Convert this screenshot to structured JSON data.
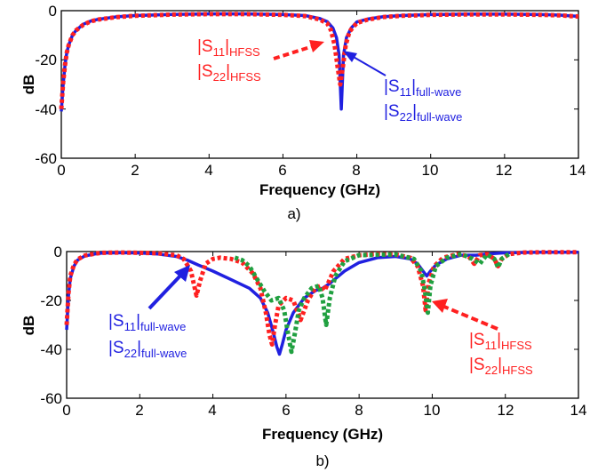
{
  "chart_data": [
    {
      "id": "a",
      "type": "line",
      "caption": "a)",
      "xlabel": "Frequency (GHz)",
      "ylabel": "dB",
      "xlim": [
        0,
        14
      ],
      "ylim": [
        -60,
        0
      ],
      "xticks": [
        "0",
        "2",
        "4",
        "6",
        "8",
        "10",
        "12",
        "14"
      ],
      "yticks": [
        "0",
        "-20",
        "-40",
        "-60"
      ],
      "grid": false,
      "series": [
        {
          "legend_label": "|S11|full-wave, |S22|full-wave",
          "color": "#2020e0",
          "style": "solid",
          "x": [
            0.0,
            0.05,
            0.1,
            0.15,
            0.2,
            0.3,
            0.4,
            0.6,
            0.8,
            1.0,
            1.5,
            2,
            3,
            4,
            5,
            6,
            6.6,
            7.0,
            7.2,
            7.35,
            7.45,
            7.52,
            7.58,
            7.64,
            7.72,
            7.85,
            8.0,
            8.3,
            8.7,
            9.2,
            10,
            11,
            12,
            13,
            13.5,
            14.0
          ],
          "y": [
            -41,
            -30,
            -22,
            -17,
            -14,
            -10,
            -8,
            -5.5,
            -4.2,
            -3.5,
            -2.5,
            -2.0,
            -1.5,
            -1.3,
            -1.3,
            -1.6,
            -2.0,
            -3.2,
            -4.5,
            -7,
            -11,
            -18,
            -40,
            -18,
            -11,
            -7,
            -4.6,
            -3.4,
            -2.5,
            -2.0,
            -1.6,
            -1.4,
            -1.4,
            -1.6,
            -1.8,
            -2.3
          ]
        },
        {
          "legend_label": "|S11|HFSS, |S22|HFSS",
          "color": "#ff2020",
          "style": "dotted",
          "x": [
            0.0,
            0.05,
            0.1,
            0.15,
            0.2,
            0.3,
            0.4,
            0.6,
            0.8,
            1.0,
            1.5,
            2,
            3,
            4,
            5,
            6,
            6.6,
            7.0,
            7.2,
            7.3,
            7.4,
            7.48,
            7.55,
            7.62,
            7.7,
            7.8,
            8.0,
            8.3,
            8.7,
            9.2,
            10,
            11,
            12,
            13,
            13.5,
            14.0
          ],
          "y": [
            -40,
            -29,
            -22,
            -17,
            -14,
            -10,
            -8,
            -5.7,
            -4.3,
            -3.6,
            -2.6,
            -2.1,
            -1.6,
            -1.4,
            -1.4,
            -1.7,
            -2.2,
            -3.6,
            -5.2,
            -8,
            -14,
            -23,
            -30,
            -23,
            -14,
            -8.5,
            -5.0,
            -3.6,
            -2.6,
            -2.1,
            -1.7,
            -1.5,
            -1.5,
            -1.7,
            -1.9,
            -2.4
          ]
        }
      ],
      "annotations": [
        {
          "series_color": "#ff2020",
          "line1_main": "|S",
          "line1_sub": "11",
          "line1_mid": "|",
          "line1_sub2": "HFSS",
          "line2_main": "|S",
          "line2_sub": "22",
          "line2_mid": "|",
          "line2_sub2": "HFSS"
        },
        {
          "series_color": "#2020e0",
          "line1_main": "|S",
          "line1_sub": "11",
          "line1_mid": "|",
          "line1_sub2": "full-wave",
          "line2_main": "|S",
          "line2_sub": "22",
          "line2_mid": "|",
          "line2_sub2": "full-wave"
        }
      ]
    },
    {
      "id": "b",
      "type": "line",
      "caption": "b)",
      "xlabel": "Frequency (GHz)",
      "ylabel": "dB",
      "xlim": [
        0,
        14
      ],
      "ylim": [
        -60,
        0
      ],
      "xticks": [
        "0",
        "2",
        "4",
        "6",
        "8",
        "10",
        "12",
        "14"
      ],
      "yticks": [
        "0",
        "-20",
        "-40",
        "-60"
      ],
      "grid": false,
      "series": [
        {
          "legend_label": "|S11|full-wave, |S22|full-wave",
          "color": "#2020e0",
          "style": "solid",
          "x": [
            0.0,
            0.05,
            0.1,
            0.2,
            0.3,
            0.5,
            0.8,
            1.0,
            1.5,
            2.0,
            2.5,
            3.0,
            3.3,
            3.6,
            4.0,
            4.5,
            5.0,
            5.3,
            5.5,
            5.65,
            5.75,
            5.82,
            5.9,
            6.0,
            6.2,
            6.5,
            6.8,
            7.0,
            7.2,
            7.6,
            8.0,
            8.5,
            9.0,
            9.4,
            9.6,
            9.75,
            9.85,
            9.95,
            10.1,
            10.4,
            10.8,
            11.2,
            11.5,
            12.0,
            13.0,
            14.0
          ],
          "y": [
            -32,
            -18,
            -11,
            -6,
            -3.5,
            -1.8,
            -0.9,
            -0.6,
            -0.5,
            -0.6,
            -1.0,
            -2.0,
            -3.5,
            -5.5,
            -8,
            -11.5,
            -15,
            -19,
            -25,
            -33,
            -39,
            -42,
            -38,
            -32,
            -25,
            -19,
            -16,
            -15,
            -13,
            -8,
            -4.5,
            -2.5,
            -2.0,
            -3.0,
            -5.0,
            -8,
            -10,
            -8,
            -5.5,
            -3.0,
            -1.5,
            -1.5,
            -1.0,
            -0.5,
            -0.3,
            -0.3
          ]
        },
        {
          "legend_label": "|S11|HFSS, |S22|HFSS",
          "color": "#ff2020",
          "style": "dotted",
          "x": [
            0.0,
            0.05,
            0.1,
            0.2,
            0.3,
            0.5,
            0.8,
            1.0,
            1.5,
            2.0,
            2.5,
            3.0,
            3.2,
            3.4,
            3.55,
            3.65,
            3.8,
            4.0,
            4.2,
            4.5,
            4.8,
            5.1,
            5.3,
            5.45,
            5.55,
            5.62,
            5.7,
            5.8,
            6.0,
            6.2,
            6.4,
            6.6,
            6.8,
            6.95,
            7.05,
            7.15,
            7.3,
            7.6,
            8.0,
            8.5,
            9.0,
            9.4,
            9.6,
            9.75,
            9.82,
            9.9,
            10.05,
            10.3,
            10.7,
            11.0,
            11.15,
            11.3,
            11.5,
            11.7,
            11.8,
            11.9,
            12.1,
            12.5,
            13.0,
            14.0
          ],
          "y": [
            -30,
            -17,
            -10,
            -5.5,
            -3.2,
            -1.6,
            -0.8,
            -0.5,
            -0.4,
            -0.5,
            -0.7,
            -1.5,
            -3,
            -8,
            -18,
            -12,
            -5,
            -3,
            -2.5,
            -3,
            -4.5,
            -9,
            -15,
            -25,
            -34,
            -38,
            -30,
            -22,
            -19,
            -20,
            -28,
            -20,
            -15,
            -14,
            -16,
            -13,
            -8,
            -3,
            -1.5,
            -1.0,
            -1.2,
            -2.5,
            -6,
            -14,
            -24,
            -13,
            -6,
            -2.5,
            -1.0,
            -2,
            -5,
            -1.5,
            -1.0,
            -3,
            -6,
            -3,
            -1.0,
            -0.4,
            -0.3,
            -0.3
          ]
        },
        {
          "legend_label": "",
          "color": "#20a040",
          "style": "dotted",
          "x": [
            4.6,
            4.8,
            5.0,
            5.2,
            5.4,
            5.6,
            5.8,
            5.95,
            6.05,
            6.15,
            6.25,
            6.35,
            6.5,
            6.7,
            6.9,
            7.0,
            7.1,
            7.2,
            7.35,
            7.6,
            8.0,
            9.0,
            9.5,
            9.7,
            9.8,
            9.88,
            9.95,
            10.1,
            10.4,
            10.8,
            11.1,
            11.3,
            11.5,
            11.7,
            11.8,
            11.9,
            12.1
          ],
          "y": [
            -2.5,
            -3.5,
            -6,
            -11,
            -16,
            -20,
            -19,
            -24,
            -33,
            -41,
            -33,
            -24,
            -19,
            -15,
            -14,
            -19,
            -30,
            -19,
            -10,
            -4,
            -1.5,
            -1.2,
            -3.0,
            -8,
            -16,
            -25,
            -14,
            -6,
            -2.5,
            -1.0,
            -3,
            -5,
            -1.2,
            -3,
            -6.5,
            -3,
            -1.0
          ]
        }
      ],
      "annotations": [
        {
          "series_color": "#2020e0",
          "line1_main": "|S",
          "line1_sub": "11",
          "line1_mid": "|",
          "line1_sub2": "full-wave",
          "line2_main": "|S",
          "line2_sub": "22",
          "line2_mid": "|",
          "line2_sub2": "full-wave"
        },
        {
          "series_color": "#ff2020",
          "line1_main": "|S",
          "line1_sub": "11",
          "line1_mid": "|",
          "line1_sub2": "HFSS",
          "line2_main": "|S",
          "line2_sub": "22",
          "line2_mid": "|",
          "line2_sub2": "HFSS"
        }
      ]
    }
  ]
}
